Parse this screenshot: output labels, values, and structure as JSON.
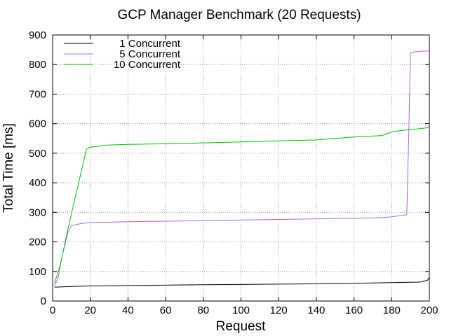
{
  "chart_data": {
    "type": "line",
    "title": "GCP Manager Benchmark (20 Requests)",
    "xlabel": "Request",
    "ylabel": "Total Time [ms]",
    "xlim": [
      0,
      200
    ],
    "ylim": [
      0,
      900
    ],
    "xticks": [
      0,
      20,
      40,
      60,
      80,
      100,
      120,
      140,
      160,
      180,
      200
    ],
    "yticks": [
      0,
      100,
      200,
      300,
      400,
      500,
      600,
      700,
      800,
      900
    ],
    "grid": true,
    "legend_position": "top-left",
    "series": [
      {
        "name": "1 Concurrent",
        "color": "#000000",
        "x": [
          1,
          10,
          20,
          50,
          80,
          100,
          120,
          140,
          160,
          180,
          195,
          199,
          200
        ],
        "y": [
          47,
          49,
          51,
          53,
          55,
          56,
          57,
          58,
          60,
          62,
          64,
          70,
          80
        ]
      },
      {
        "name": "5 Concurrent",
        "color": "#b060e0",
        "x": [
          1,
          3,
          5,
          8,
          10,
          15,
          20,
          40,
          60,
          80,
          100,
          120,
          140,
          160,
          175,
          180,
          188,
          189,
          190,
          192,
          195,
          200
        ],
        "y": [
          50,
          80,
          150,
          230,
          255,
          262,
          265,
          268,
          270,
          272,
          274,
          276,
          278,
          280,
          282,
          285,
          292,
          550,
          840,
          843,
          845,
          846
        ]
      },
      {
        "name": "10 Concurrent",
        "color": "#00c000",
        "x": [
          1,
          2,
          4,
          8,
          12,
          16,
          18,
          20,
          30,
          40,
          60,
          80,
          100,
          120,
          140,
          150,
          160,
          175,
          180,
          185,
          190,
          200
        ],
        "y": [
          60,
          80,
          120,
          240,
          350,
          460,
          515,
          520,
          528,
          530,
          532,
          535,
          538,
          542,
          545,
          550,
          555,
          560,
          572,
          577,
          580,
          587
        ]
      }
    ]
  }
}
